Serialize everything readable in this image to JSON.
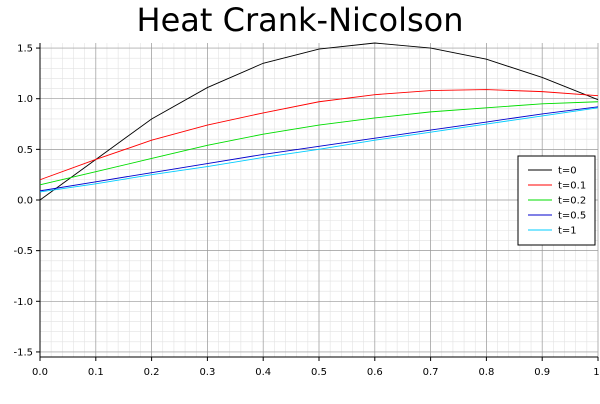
{
  "chart_data": {
    "type": "line",
    "title": "Heat Crank-Nicolson",
    "xlabel": "",
    "ylabel": "",
    "xlim": [
      0,
      1
    ],
    "ylim": [
      -1.55,
      1.55
    ],
    "x_ticks": [
      0.0,
      0.1,
      0.2,
      0.3,
      0.4,
      0.5,
      0.6,
      0.7,
      0.8,
      0.9,
      1.0
    ],
    "x_tick_labels": [
      "0.0",
      "0.1",
      "0.2",
      "0.3",
      "0.4",
      "0.5",
      "0.6",
      "0.7",
      "0.8",
      "0.9",
      "1."
    ],
    "y_ticks": [
      1.5,
      1.0,
      0.5,
      0.0,
      -0.5,
      -1.0,
      -1.5
    ],
    "y_tick_labels": [
      "1.5",
      "1.0",
      "0.5",
      "0.0",
      "-0.5",
      "-1.0",
      "-1.5"
    ],
    "grid": true,
    "legend_position": "right",
    "x": [
      0.0,
      0.1,
      0.2,
      0.3,
      0.4,
      0.5,
      0.6,
      0.7,
      0.8,
      0.9,
      1.0
    ],
    "series": [
      {
        "name": "t=0",
        "color": "#000000",
        "values": [
          0.0,
          0.4,
          0.8,
          1.11,
          1.35,
          1.49,
          1.55,
          1.5,
          1.39,
          1.21,
          0.99
        ]
      },
      {
        "name": "t=0.1",
        "color": "#ff0000",
        "values": [
          0.2,
          0.4,
          0.59,
          0.74,
          0.86,
          0.97,
          1.04,
          1.08,
          1.09,
          1.07,
          1.03
        ]
      },
      {
        "name": "t=0.2",
        "color": "#00dd00",
        "values": [
          0.15,
          0.28,
          0.41,
          0.54,
          0.65,
          0.74,
          0.81,
          0.87,
          0.91,
          0.95,
          0.97
        ]
      },
      {
        "name": "t=0.5",
        "color": "#0000cc",
        "values": [
          0.09,
          0.18,
          0.27,
          0.36,
          0.45,
          0.53,
          0.61,
          0.69,
          0.77,
          0.85,
          0.92
        ]
      },
      {
        "name": "t=1",
        "color": "#00ccff",
        "values": [
          0.08,
          0.16,
          0.25,
          0.33,
          0.42,
          0.5,
          0.59,
          0.67,
          0.75,
          0.83,
          0.91
        ]
      }
    ]
  }
}
